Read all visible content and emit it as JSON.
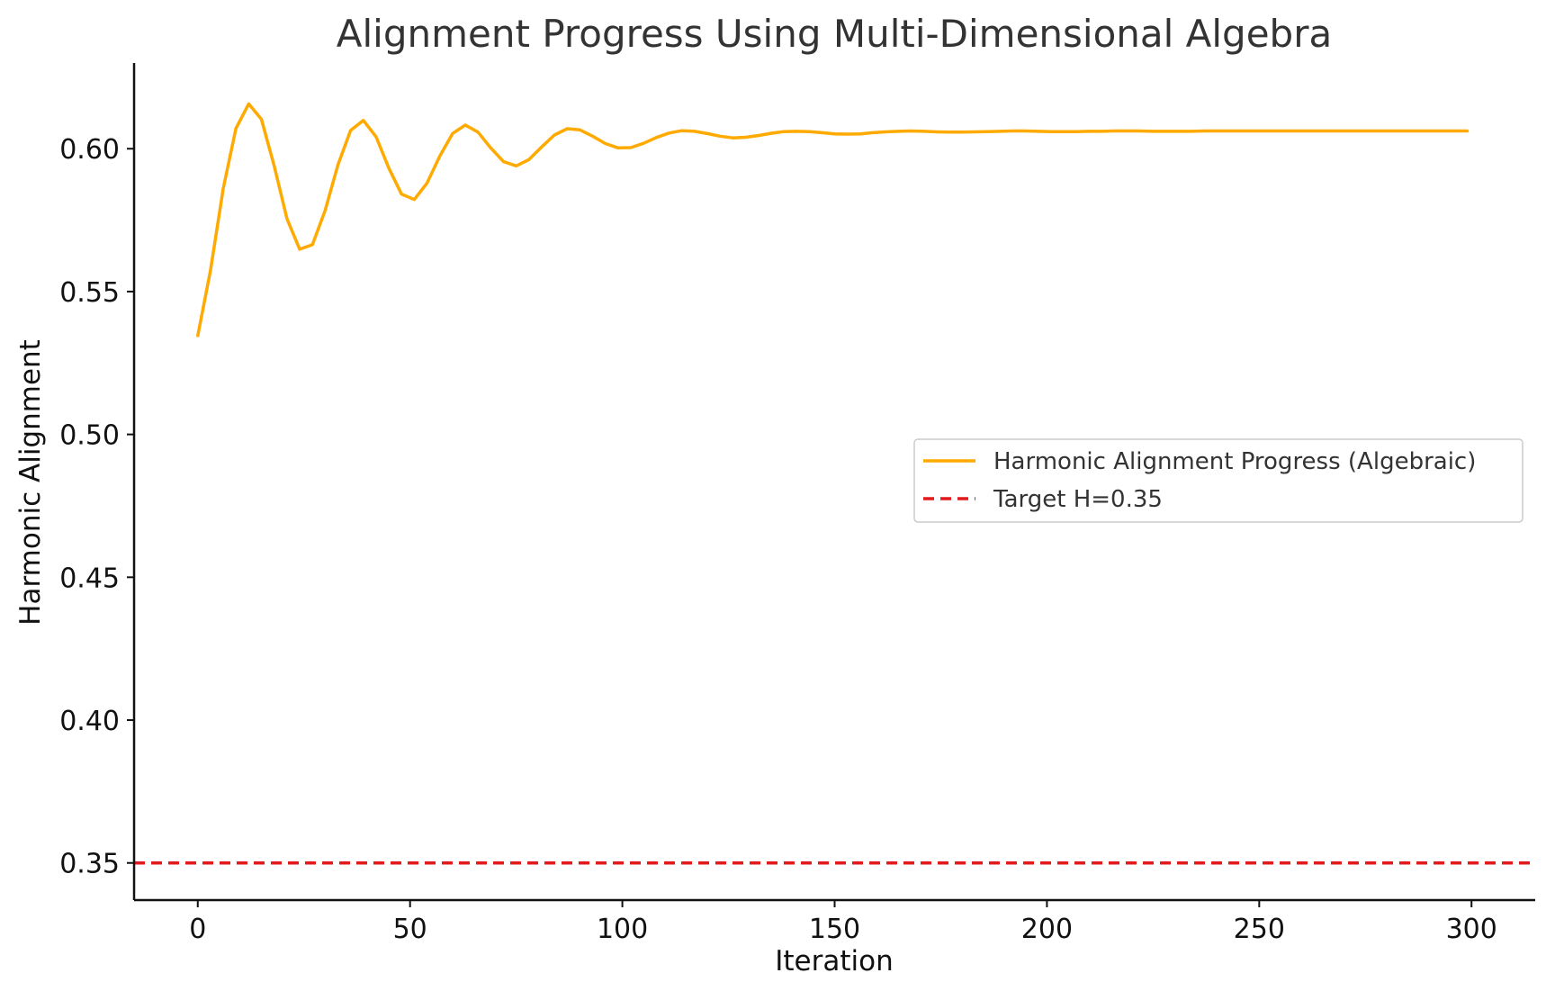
{
  "chart_data": {
    "type": "line",
    "title": "Alignment Progress Using Multi-Dimensional Algebra",
    "xlabel": "Iteration",
    "ylabel": "Harmonic Alignment",
    "xlim": [
      -15,
      315
    ],
    "ylim": [
      0.337,
      0.63
    ],
    "xticks": [
      0,
      50,
      100,
      150,
      200,
      250,
      300
    ],
    "yticks": [
      0.35,
      0.4,
      0.45,
      0.5,
      0.55,
      0.6
    ],
    "xtick_labels": [
      "0",
      "50",
      "100",
      "150",
      "200",
      "250",
      "300"
    ],
    "ytick_labels": [
      "0.35",
      "0.40",
      "0.45",
      "0.50",
      "0.55",
      "0.60"
    ],
    "grid": false,
    "legend_position": "center-right",
    "series": [
      {
        "name": "Harmonic Alignment Progress (Algebraic)",
        "style": "solid",
        "color": "#FFAA00",
        "x": [
          0,
          3,
          6,
          9,
          12,
          15,
          18,
          21,
          24,
          27,
          30,
          33,
          36,
          39,
          42,
          45,
          48,
          51,
          54,
          57,
          60,
          63,
          66,
          69,
          72,
          75,
          78,
          81,
          84,
          87,
          90,
          93,
          96,
          99,
          102,
          105,
          108,
          111,
          114,
          117,
          120,
          123,
          126,
          129,
          132,
          135,
          138,
          141,
          144,
          147,
          150,
          153,
          156,
          159,
          162,
          165,
          168,
          171,
          174,
          177,
          180,
          183,
          186,
          189,
          192,
          195,
          198,
          201,
          204,
          207,
          210,
          213,
          216,
          219,
          222,
          225,
          228,
          231,
          234,
          237,
          240,
          243,
          246,
          249,
          252,
          255,
          258,
          261,
          264,
          267,
          270,
          273,
          276,
          279,
          282,
          285,
          288,
          291,
          294,
          297,
          299
        ],
        "y": [
          0.5346,
          0.5574,
          0.5861,
          0.6071,
          0.6157,
          0.6103,
          0.594,
          0.5755,
          0.5648,
          0.5664,
          0.5784,
          0.5943,
          0.6064,
          0.6099,
          0.6042,
          0.5932,
          0.5841,
          0.5822,
          0.588,
          0.5974,
          0.6053,
          0.6083,
          0.6058,
          0.6003,
          0.5955,
          0.594,
          0.5962,
          0.6006,
          0.6048,
          0.607,
          0.6066,
          0.6044,
          0.6018,
          0.6003,
          0.6004,
          0.6019,
          0.6039,
          0.6055,
          0.6063,
          0.6061,
          0.6053,
          0.6044,
          0.6038,
          0.604,
          0.6046,
          0.6054,
          0.606,
          0.6061,
          0.606,
          0.6056,
          0.6052,
          0.6051,
          0.6052,
          0.6056,
          0.6059,
          0.6061,
          0.6062,
          0.6061,
          0.6059,
          0.6058,
          0.6058,
          0.6059,
          0.606,
          0.6061,
          0.6062,
          0.6062,
          0.6061,
          0.606,
          0.606,
          0.606,
          0.6061,
          0.6061,
          0.6062,
          0.6062,
          0.6062,
          0.6061,
          0.6061,
          0.6061,
          0.6061,
          0.6062,
          0.6062,
          0.6062,
          0.6062,
          0.6062,
          0.6062,
          0.6062,
          0.6062,
          0.6062,
          0.6062,
          0.6062,
          0.6062,
          0.6062,
          0.6062,
          0.6062,
          0.6062,
          0.6062,
          0.6062,
          0.6062,
          0.6062,
          0.6062,
          0.6062
        ]
      },
      {
        "name": "Target H=0.35",
        "style": "dashed",
        "color": "#E31A1C",
        "y_constant": 0.35
      }
    ]
  }
}
